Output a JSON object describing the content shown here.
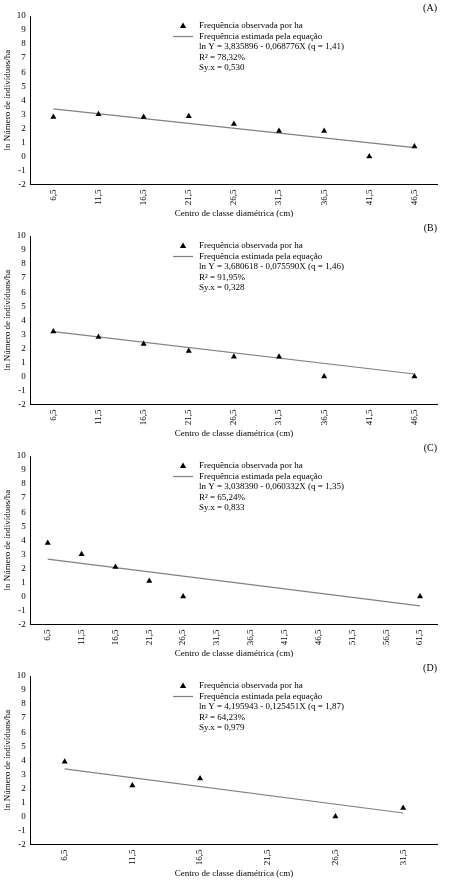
{
  "chart_data": [
    {
      "type": "scatter",
      "title": "(A)",
      "x_label": "Centro de classe diamétrica (cm)",
      "y_label": "ln Número de indivíduos/ha",
      "series": [
        {
          "name": "Frequência observada por ha",
          "color": "#000000",
          "marker": "triangle",
          "type": "scatter",
          "x": [
            6.5,
            11.5,
            16.5,
            21.5,
            26.5,
            31.5,
            36.5,
            41.5,
            46.5
          ],
          "values": [
            2.8,
            3.0,
            2.8,
            2.85,
            2.3,
            1.8,
            1.8,
            0.0,
            0.7
          ]
        },
        {
          "name": "Frequência estimada pela equação",
          "color": "#808080",
          "type": "line",
          "line_style": "solid",
          "x": [
            6.5,
            46.5
          ],
          "values": [
            3.39,
            0.63
          ]
        }
      ],
      "annotations": [
        "ln Y = 3,835896 - 0,068776X (q = 1,41)",
        "R² = 78,32%",
        "Sy.x = 0,530"
      ],
      "xlim": [
        4,
        49
      ],
      "xticks": [
        {
          "value": 6.5,
          "label": "6,5"
        },
        {
          "value": 11.5,
          "label": "11,5"
        },
        {
          "value": 16.5,
          "label": "16,5"
        },
        {
          "value": 21.5,
          "label": "21,5"
        },
        {
          "value": 26.5,
          "label": "26,5"
        },
        {
          "value": 31.5,
          "label": "31,5"
        },
        {
          "value": 36.5,
          "label": "36,5"
        },
        {
          "value": 41.5,
          "label": "41,5"
        },
        {
          "value": 46.5,
          "label": "46,5"
        }
      ],
      "ylim": [
        -2,
        10
      ],
      "yticks": [
        -2,
        -1,
        0,
        1,
        2,
        3,
        4,
        5,
        6,
        7,
        8,
        9,
        10
      ],
      "grid": false,
      "legend": "upper right"
    },
    {
      "type": "scatter",
      "title": "(B)",
      "x_label": "Centro de classe diamétrica (cm)",
      "y_label": "ln Número de indivíduos/ha",
      "series": [
        {
          "name": "Frequência observada por ha",
          "color": "#000000",
          "marker": "triangle",
          "type": "scatter",
          "x": [
            6.5,
            11.5,
            16.5,
            21.5,
            26.5,
            31.5,
            36.5,
            46.5
          ],
          "values": [
            3.2,
            2.8,
            2.3,
            1.8,
            1.4,
            1.4,
            0.0,
            0.0
          ]
        },
        {
          "name": "Frequência estimada pela equação",
          "color": "#808080",
          "type": "line",
          "line_style": "solid",
          "x": [
            6.5,
            46.5
          ],
          "values": [
            3.19,
            0.17
          ]
        }
      ],
      "annotations": [
        "ln Y = 3,680618 - 0,075590X (q = 1,46)",
        "R² = 91,95%",
        "Sy.x = 0,328"
      ],
      "xlim": [
        4,
        49
      ],
      "xticks": [
        {
          "value": 6.5,
          "label": "6,5"
        },
        {
          "value": 11.5,
          "label": "11,5"
        },
        {
          "value": 16.5,
          "label": "16,5"
        },
        {
          "value": 21.5,
          "label": "21,5"
        },
        {
          "value": 26.5,
          "label": "26,5"
        },
        {
          "value": 31.5,
          "label": "31,5"
        },
        {
          "value": 36.5,
          "label": "36,5"
        },
        {
          "value": 41.5,
          "label": "41,5"
        },
        {
          "value": 46.5,
          "label": "46,5"
        }
      ],
      "ylim": [
        -2,
        10
      ],
      "yticks": [
        -2,
        -1,
        0,
        1,
        2,
        3,
        4,
        5,
        6,
        7,
        8,
        9,
        10
      ],
      "grid": false,
      "legend": "upper right"
    },
    {
      "type": "scatter",
      "title": "(C)",
      "x_label": "Centro de classe diamétrica (cm)",
      "y_label": "ln Número de indivíduos/ha",
      "series": [
        {
          "name": "Frequência observada por ha",
          "color": "#000000",
          "marker": "triangle",
          "type": "scatter",
          "x": [
            6.5,
            11.5,
            16.5,
            21.5,
            26.5,
            61.5
          ],
          "values": [
            3.8,
            3.0,
            2.1,
            1.1,
            0.0,
            0.0
          ]
        },
        {
          "name": "Frequência estimada pela equação",
          "color": "#808080",
          "type": "line",
          "line_style": "solid",
          "x": [
            6.5,
            61.5
          ],
          "values": [
            2.65,
            -0.67
          ]
        }
      ],
      "annotations": [
        "ln Y = 3,038390 - 0,060332X (q = 1,35)",
        "R² = 65,24%",
        "Sy.x = 0,833"
      ],
      "xlim": [
        4,
        64
      ],
      "xticks": [
        {
          "value": 6.5,
          "label": "6,5"
        },
        {
          "value": 11.5,
          "label": "11,5"
        },
        {
          "value": 16.5,
          "label": "16,5"
        },
        {
          "value": 21.5,
          "label": "21,5"
        },
        {
          "value": 26.5,
          "label": "26,5"
        },
        {
          "value": 31.5,
          "label": "31,5"
        },
        {
          "value": 36.5,
          "label": "36,5"
        },
        {
          "value": 41.5,
          "label": "41,5"
        },
        {
          "value": 46.5,
          "label": "46,5"
        },
        {
          "value": 51.5,
          "label": "51,5"
        },
        {
          "value": 56.5,
          "label": "56,5"
        },
        {
          "value": 61.5,
          "label": "61,5"
        }
      ],
      "ylim": [
        -2,
        10
      ],
      "yticks": [
        -2,
        -1,
        0,
        1,
        2,
        3,
        4,
        5,
        6,
        7,
        8,
        9,
        10
      ],
      "grid": false,
      "legend": "upper right"
    },
    {
      "type": "scatter",
      "title": "(D)",
      "x_label": "Centro de classe diamétrica (cm)",
      "y_label": "ln Número de indivíduos/ha",
      "series": [
        {
          "name": "Frequência observada por ha",
          "color": "#000000",
          "marker": "triangle",
          "type": "scatter",
          "x": [
            6.5,
            11.5,
            16.5,
            26.5,
            31.5
          ],
          "values": [
            3.9,
            2.2,
            2.7,
            0.0,
            0.6
          ]
        },
        {
          "name": "Frequência estimada pela equação",
          "color": "#808080",
          "type": "line",
          "line_style": "solid",
          "x": [
            6.5,
            31.5
          ],
          "values": [
            3.38,
            0.24
          ]
        }
      ],
      "annotations": [
        "ln Y = 4,195943 - 0,125451X (q = 1,87)",
        "R² = 64,23%",
        "Sy.x = 0,979"
      ],
      "xlim": [
        4,
        34
      ],
      "xticks": [
        {
          "value": 6.5,
          "label": "6,5"
        },
        {
          "value": 11.5,
          "label": "11,5"
        },
        {
          "value": 16.5,
          "label": "16,5"
        },
        {
          "value": 21.5,
          "label": "21,5"
        },
        {
          "value": 26.5,
          "label": "26,5"
        },
        {
          "value": 31.5,
          "label": "31,5"
        }
      ],
      "ylim": [
        -2,
        10
      ],
      "yticks": [
        -2,
        -1,
        0,
        1,
        2,
        3,
        4,
        5,
        6,
        7,
        8,
        9,
        10
      ],
      "grid": false,
      "legend": "upper right"
    }
  ]
}
